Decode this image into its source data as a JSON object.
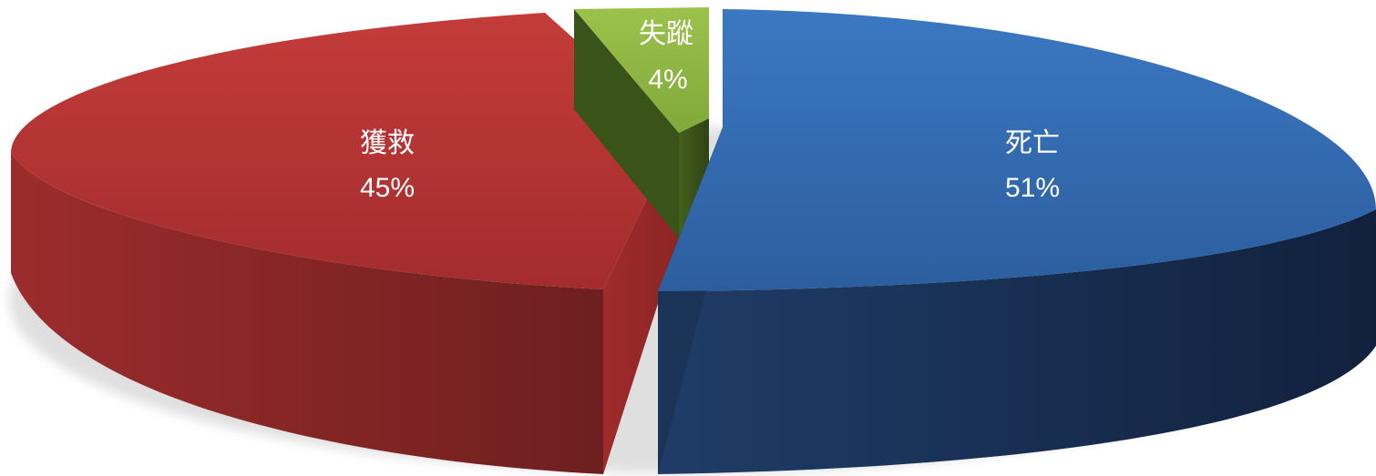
{
  "chart_data": {
    "type": "pie",
    "style": "3d-exploded",
    "title": "",
    "categories": [
      "死亡",
      "獲救",
      "失蹤"
    ],
    "values": [
      51,
      45,
      4
    ],
    "value_labels": [
      "51%",
      "45%",
      "4%"
    ],
    "colors": {
      "死亡": "#3873bc",
      "獲救": "#c0393a",
      "失蹤": "#92bb46"
    },
    "legend": "none",
    "start_angle": "12 o'clock",
    "direction": "clockwise"
  }
}
